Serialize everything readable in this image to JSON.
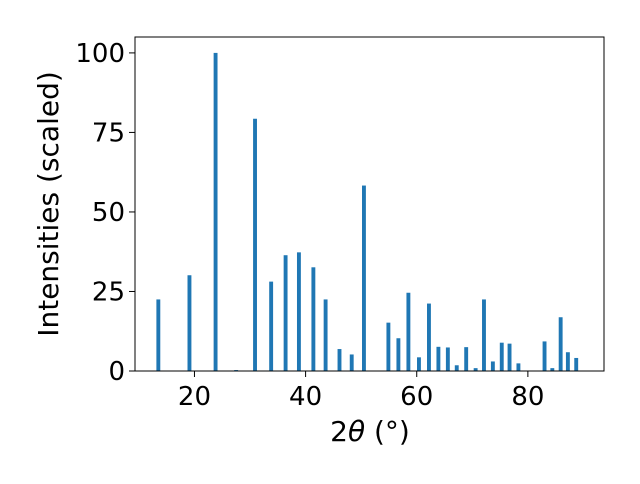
{
  "chart_data": {
    "type": "bar",
    "xlabel_prefix": "2",
    "xlabel_symbol": "θ",
    "xlabel_unit": " (°)",
    "ylabel": "Intensities (scaled)",
    "xlim": [
      9.3,
      93.7
    ],
    "ylim": [
      0,
      105
    ],
    "xticks": [
      20,
      40,
      60,
      80
    ],
    "yticks": [
      0,
      25,
      50,
      75,
      100
    ],
    "bar_width_deg": 0.7,
    "grid": false,
    "x": [
      13.5,
      19.1,
      23.8,
      27.5,
      30.9,
      33.8,
      36.4,
      38.8,
      41.4,
      43.6,
      46.1,
      48.3,
      50.5,
      54.9,
      56.7,
      58.5,
      60.4,
      62.2,
      63.9,
      65.6,
      67.2,
      68.9,
      70.6,
      72.1,
      73.7,
      75.3,
      76.7,
      78.3,
      79.7,
      83.0,
      84.4,
      85.9,
      87.2,
      88.7
    ],
    "values": [
      22.5,
      30.1,
      100.0,
      0.3,
      79.3,
      28.1,
      36.4,
      37.3,
      32.6,
      22.5,
      6.9,
      5.2,
      58.3,
      15.2,
      10.3,
      24.6,
      4.3,
      21.2,
      7.6,
      7.4,
      1.8,
      7.5,
      0.9,
      22.5,
      3.0,
      8.9,
      8.6,
      2.4,
      0.0,
      9.3,
      0.9,
      16.9,
      5.9,
      4.1
    ]
  },
  "colors": {
    "bar": "#1f77b4",
    "axes": "#000000",
    "background": "#ffffff"
  }
}
